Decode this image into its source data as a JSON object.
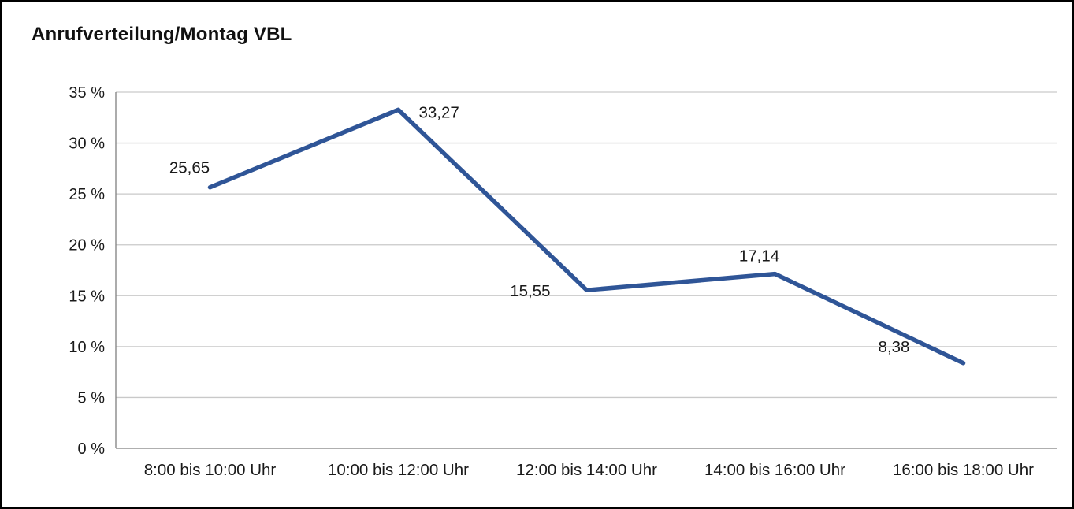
{
  "frame": {
    "title": "Anrufverteilung/Montag VBL"
  },
  "chart_data": {
    "type": "line",
    "title": "Anrufverteilung/Montag VBL",
    "categories": [
      "8:00 bis 10:00 Uhr",
      "10:00 bis 12:00 Uhr",
      "12:00 bis 14:00 Uhr",
      "14:00 bis 16:00 Uhr",
      "16:00 bis 18:00 Uhr"
    ],
    "values": [
      25.65,
      33.27,
      15.55,
      17.14,
      8.38
    ],
    "value_labels": [
      "25,65",
      "33,27",
      "15,55",
      "17,14",
      "8,38"
    ],
    "xlabel": "",
    "ylabel": "",
    "ylim": [
      0,
      35
    ],
    "ytick_step": 5,
    "ytick_suffix": " %",
    "grid": "horizontal-major",
    "legend": "none",
    "colors": {
      "line": "#2f5597",
      "text": "#1a1a1a",
      "gridline": "#c9c9c9",
      "axis": "#7f7f7f"
    }
  }
}
